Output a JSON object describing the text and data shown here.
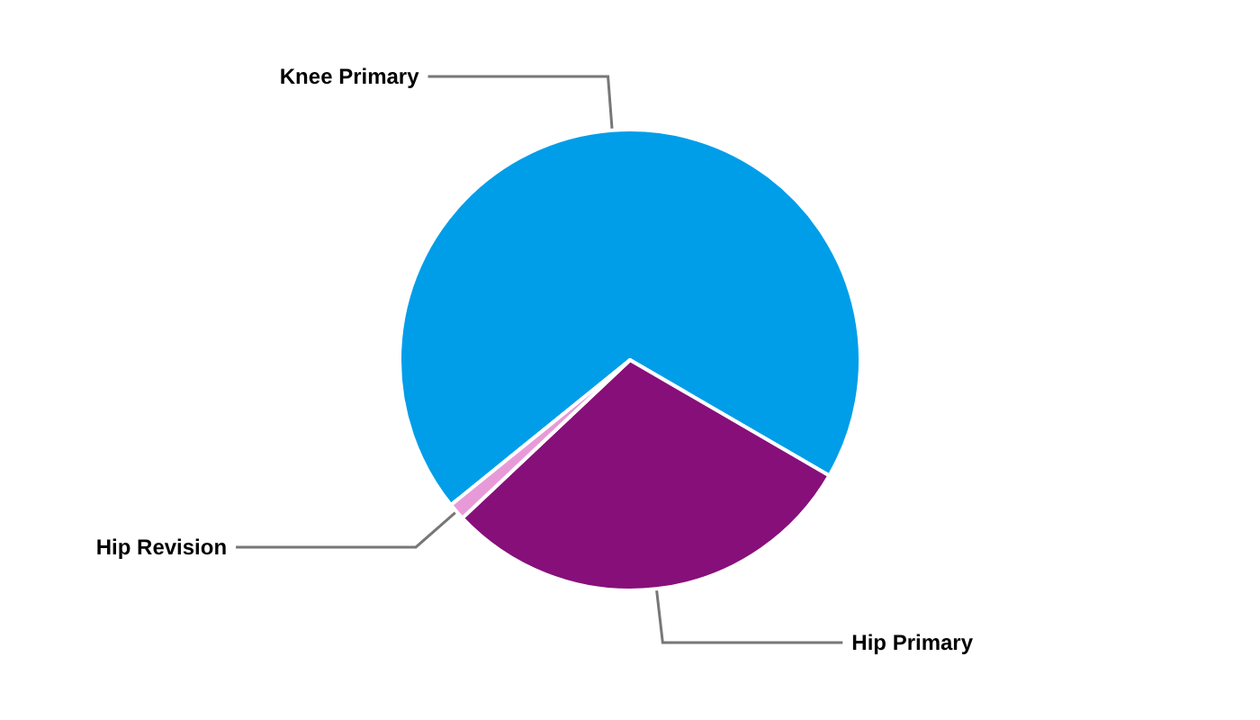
{
  "chart_data": {
    "type": "pie",
    "categories": [
      "Knee Primary",
      "Hip Primary",
      "Hip Revision"
    ],
    "values": [
      69.2,
      29.6,
      1.2
    ],
    "colors": [
      "#009ee8",
      "#870f7a",
      "#e89ad8"
    ],
    "legend": false
  }
}
